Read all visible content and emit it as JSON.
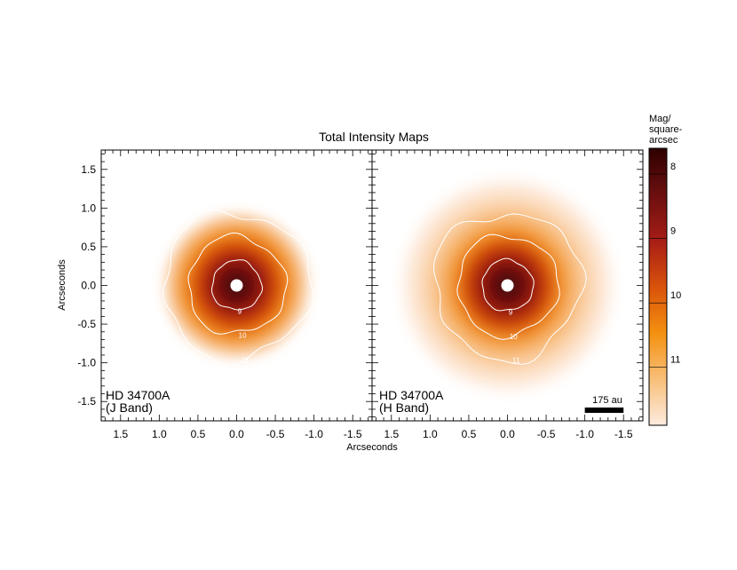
{
  "figure_title": "Total Intensity Maps",
  "colorbar": {
    "label_lines": [
      "Mag/",
      "square-",
      "arcsec"
    ],
    "ticks": [
      8,
      9,
      10,
      11
    ],
    "range": [
      7.6,
      11.9
    ],
    "colors": [
      "#2e0000",
      "#6b0f0f",
      "#a71d16",
      "#d9520b",
      "#f4900f",
      "#f8bf79",
      "#fdece0"
    ]
  },
  "chart_data": [
    {
      "type": "heatmap",
      "panel": "J Band",
      "annotation_lines": [
        "HD 34700A",
        "(J Band)"
      ],
      "xlabel": "Arcseconds",
      "ylabel": "Arcseconds",
      "xlim": [
        1.75,
        -1.75
      ],
      "ylim": [
        -1.75,
        1.75
      ],
      "xticks": [
        1.5,
        1.0,
        0.5,
        0.0,
        -0.5,
        -1.0,
        -1.5
      ],
      "xtick_labels": [
        "1.5",
        "1.0",
        "0.5",
        "0.0",
        "-0.5",
        "-1.0",
        "-1.5"
      ],
      "yticks": [
        1.5,
        1.0,
        0.5,
        0.0,
        -0.5,
        -1.0,
        -1.5
      ],
      "ytick_labels": [
        "1.5",
        "1.0",
        "0.5",
        "0.0",
        "-0.5",
        "-1.0",
        "-1.5"
      ],
      "contours": [
        {
          "level": 9,
          "label": "9",
          "radius_arcsec": 0.32
        },
        {
          "level": 10,
          "label": "10",
          "radius_arcsec": 0.63
        },
        {
          "level": 11,
          "label": "11",
          "radius_arcsec": 0.95
        }
      ],
      "extent_arcsec": 1.0
    },
    {
      "type": "heatmap",
      "panel": "H Band",
      "annotation_lines": [
        "HD 34700A",
        "(H Band)"
      ],
      "xlabel": "Arcseconds",
      "xlim": [
        1.75,
        -1.75
      ],
      "ylim": [
        -1.75,
        1.75
      ],
      "xticks": [
        1.5,
        1.0,
        0.5,
        0.0,
        -0.5,
        -1.0,
        -1.5
      ],
      "xtick_labels": [
        "1.5",
        "1.0",
        "0.5",
        "0.0",
        "-0.5",
        "-1.0",
        "-1.5"
      ],
      "yticks": [
        1.5,
        1.0,
        0.5,
        0.0,
        -0.5,
        -1.0,
        -1.5
      ],
      "contours": [
        {
          "level": 9,
          "label": "9",
          "radius_arcsec": 0.33
        },
        {
          "level": 10,
          "label": "10",
          "radius_arcsec": 0.65
        },
        {
          "level": 11,
          "label": "11",
          "radius_arcsec": 0.95
        }
      ],
      "extent_arcsec": 1.45,
      "scale_bar": {
        "label": "175 au",
        "length_arcsec": 0.5
      }
    }
  ]
}
